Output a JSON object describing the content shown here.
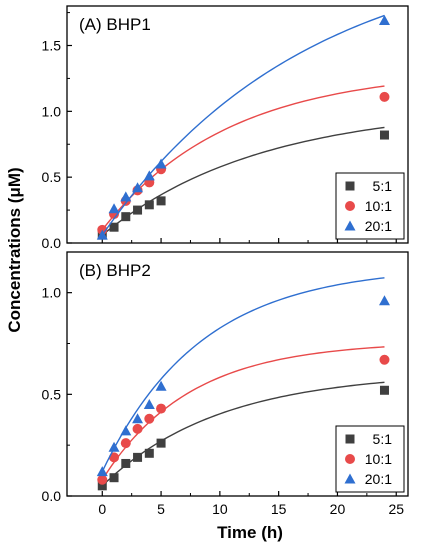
{
  "chart_data": [
    {
      "type": "scatter",
      "title": "(A) BHP1",
      "xlim": [
        -3,
        26
      ],
      "ylim": [
        0,
        1.8
      ],
      "yticks": [
        "0.0",
        "0.5",
        "1.0",
        "1.5"
      ],
      "series": [
        {
          "name": "5:1",
          "marker": "square",
          "color": "#404040",
          "x": [
            0,
            1,
            2,
            3,
            4,
            5,
            24
          ],
          "y": [
            0.06,
            0.12,
            0.2,
            0.25,
            0.29,
            0.32,
            0.82
          ],
          "fit": {
            "a": 0.98,
            "k": 0.075
          }
        },
        {
          "name": "10:1",
          "marker": "circle",
          "color": "#e84a4a",
          "x": [
            0,
            1,
            2,
            3,
            4,
            5,
            24
          ],
          "y": [
            0.1,
            0.22,
            0.32,
            0.4,
            0.46,
            0.56,
            1.11
          ],
          "fit": {
            "a": 1.22,
            "k": 0.094
          }
        },
        {
          "name": "20:1",
          "marker": "triangle",
          "color": "#2f6fd0",
          "x": [
            0,
            1,
            2,
            3,
            4,
            5,
            24
          ],
          "y": [
            0.06,
            0.26,
            0.35,
            0.42,
            0.51,
            0.6,
            1.69
          ],
          "fit": {
            "a": 2.22,
            "k": 0.058
          }
        }
      ],
      "legend": "bottom-right"
    },
    {
      "type": "scatter",
      "title": "(B) BHP2",
      "xlim": [
        -3,
        26
      ],
      "ylim": [
        0,
        1.2
      ],
      "yticks": [
        "0.0",
        "0.5",
        "1.0"
      ],
      "series": [
        {
          "name": "5:1",
          "marker": "square",
          "color": "#404040",
          "x": [
            0,
            1,
            2,
            3,
            4,
            5,
            24
          ],
          "y": [
            0.05,
            0.09,
            0.16,
            0.19,
            0.21,
            0.26,
            0.52
          ],
          "fit": {
            "a": 0.56,
            "k": 0.1
          }
        },
        {
          "name": "10:1",
          "marker": "circle",
          "color": "#e84a4a",
          "x": [
            0,
            1,
            2,
            3,
            4,
            5,
            24
          ],
          "y": [
            0.08,
            0.19,
            0.26,
            0.33,
            0.38,
            0.43,
            0.67
          ],
          "fit": {
            "a": 0.68,
            "k": 0.135
          }
        },
        {
          "name": "20:1",
          "marker": "triangle",
          "color": "#2f6fd0",
          "x": [
            0,
            1,
            2,
            3,
            4,
            5,
            24
          ],
          "y": [
            0.12,
            0.24,
            0.32,
            0.38,
            0.45,
            0.54,
            0.96
          ],
          "fit": {
            "a": 1.01,
            "k": 0.12
          }
        }
      ],
      "legend": "bottom-right"
    }
  ],
  "xlabel": "Time (h)",
  "ylabel": "Concentrations (μM)",
  "xticks": [
    "0",
    "5",
    "10",
    "15",
    "20",
    "25"
  ],
  "xtick_values": [
    0,
    5,
    10,
    15,
    20,
    25
  ]
}
